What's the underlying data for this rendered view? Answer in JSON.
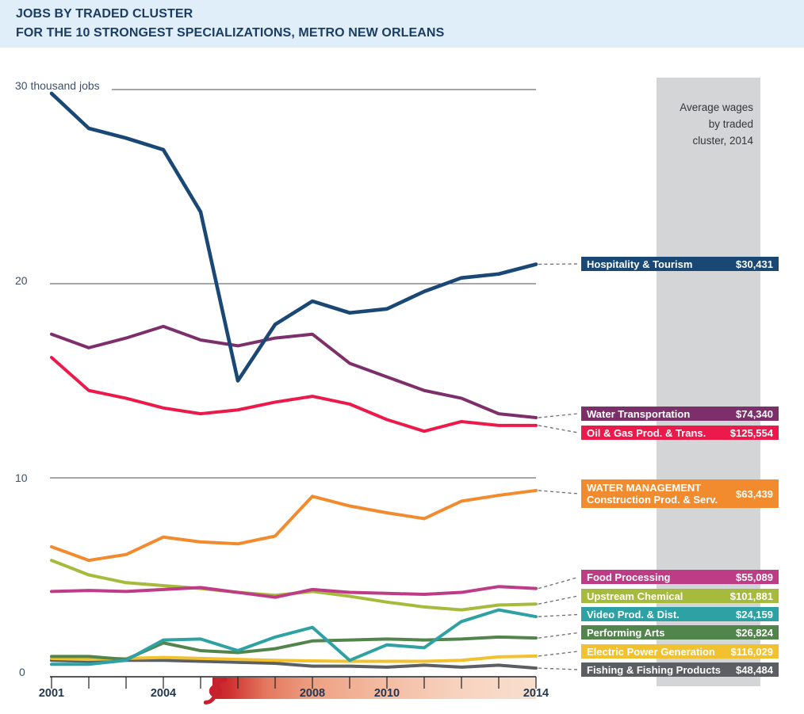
{
  "header": {
    "title_line1": "JOBS BY TRADED CLUSTER",
    "title_line2": "FOR THE 10 STRONGEST SPECIALIZATIONS, METRO NEW ORLEANS"
  },
  "wage_panel": {
    "heading_line1": "Average wages",
    "heading_line2": "by traded",
    "heading_line3": "cluster, 2014",
    "band_color": "#D3D5D7"
  },
  "chart_data": {
    "type": "line",
    "title": "Jobs by traded cluster for the 10 strongest specializations, Metro New Orleans",
    "unit": "thousand jobs",
    "x": [
      2001,
      2002,
      2003,
      2004,
      2005,
      2006,
      2007,
      2008,
      2009,
      2010,
      2011,
      2012,
      2013,
      2014
    ],
    "x_tick_display": [
      "2001",
      "2004",
      "2008",
      "2010",
      "2014"
    ],
    "x_tick_years": [
      2001,
      2004,
      2008,
      2010,
      2014
    ],
    "ylim": [
      0,
      30
    ],
    "y_ticks": [
      0,
      10,
      20,
      30
    ],
    "y_tick_display": [
      "30 thousand jobs",
      "20",
      "10",
      "0"
    ],
    "grid": "horizontal",
    "legend_position": "right-labeled-bars",
    "event_marker": {
      "x_year": 2005.4,
      "icon": "hurricane-icon",
      "band_colors": [
        "#C32127",
        "#F9DFCF"
      ]
    },
    "series": [
      {
        "id": "hospitality-tourism",
        "name": "Hospitality & Tourism",
        "wage_2014": "$30,431",
        "color": "#1A4876",
        "values": [
          29.8,
          28.0,
          27.5,
          26.9,
          23.7,
          15.0,
          17.9,
          19.1,
          18.5,
          18.7,
          19.6,
          20.3,
          20.5,
          21.0
        ]
      },
      {
        "id": "water-transportation",
        "name": "Water Transportation",
        "wage_2014": "$74,340",
        "color": "#7D2F6B",
        "values": [
          17.4,
          16.7,
          17.2,
          17.8,
          17.1,
          16.8,
          17.2,
          17.4,
          15.9,
          15.2,
          14.5,
          14.1,
          13.3,
          13.1
        ]
      },
      {
        "id": "oil-gas-prod-trans",
        "name": "Oil & Gas Prod. & Trans.",
        "wage_2014": "$125,554",
        "color": "#EC1A4B",
        "values": [
          16.2,
          14.5,
          14.1,
          13.6,
          13.3,
          13.5,
          13.9,
          14.2,
          13.8,
          13.0,
          12.4,
          12.9,
          12.7,
          12.7
        ]
      },
      {
        "id": "construction-prod-serv",
        "name": "WATER MANAGEMENT",
        "name_line2": "Construction Prod. & Serv.",
        "wage_2014": "$63,439",
        "color": "#F28A2E",
        "values": [
          6.45,
          5.75,
          6.05,
          6.95,
          6.7,
          6.6,
          7.0,
          9.05,
          8.55,
          8.2,
          7.9,
          8.8,
          9.1,
          9.35
        ]
      },
      {
        "id": "food-processing",
        "name": "Food Processing",
        "wage_2014": "$55,089",
        "color": "#BE3C86",
        "values": [
          4.15,
          4.2,
          4.15,
          4.25,
          4.35,
          4.1,
          3.85,
          4.25,
          4.1,
          4.05,
          4.0,
          4.1,
          4.4,
          4.3
        ]
      },
      {
        "id": "upstream-chemical",
        "name": "Upstream Chemical",
        "wage_2014": "$101,881",
        "color": "#A6BA3B",
        "values": [
          5.75,
          5.0,
          4.6,
          4.45,
          4.3,
          4.1,
          3.95,
          4.15,
          3.9,
          3.6,
          3.35,
          3.2,
          3.45,
          3.5
        ]
      },
      {
        "id": "video-prod-dist",
        "name": "Video Prod. & Dist.",
        "wage_2014": "$24,159",
        "color": "#2DA1A3",
        "values": [
          0.4,
          0.4,
          0.6,
          1.65,
          1.7,
          1.1,
          1.8,
          2.3,
          0.6,
          1.4,
          1.25,
          2.6,
          3.2,
          2.85
        ]
      },
      {
        "id": "performing-arts",
        "name": "Performing Arts",
        "wage_2014": "$26,824",
        "color": "#52854B",
        "values": [
          0.8,
          0.8,
          0.65,
          1.5,
          1.1,
          1.0,
          1.2,
          1.6,
          1.65,
          1.7,
          1.65,
          1.7,
          1.8,
          1.75
        ]
      },
      {
        "id": "electric-power-generation",
        "name": "Electric Power Generation",
        "wage_2014": "$116,029",
        "color": "#F2C12E",
        "values": [
          0.7,
          0.65,
          0.7,
          0.75,
          0.7,
          0.65,
          0.6,
          0.57,
          0.55,
          0.55,
          0.55,
          0.6,
          0.78,
          0.82
        ]
      },
      {
        "id": "fishing-fishing-products",
        "name": "Fishing & Fishing Products",
        "wage_2014": "$48,484",
        "color": "#5B5E62",
        "values": [
          0.6,
          0.55,
          0.6,
          0.6,
          0.55,
          0.5,
          0.45,
          0.3,
          0.3,
          0.25,
          0.35,
          0.25,
          0.35,
          0.2
        ]
      }
    ]
  }
}
